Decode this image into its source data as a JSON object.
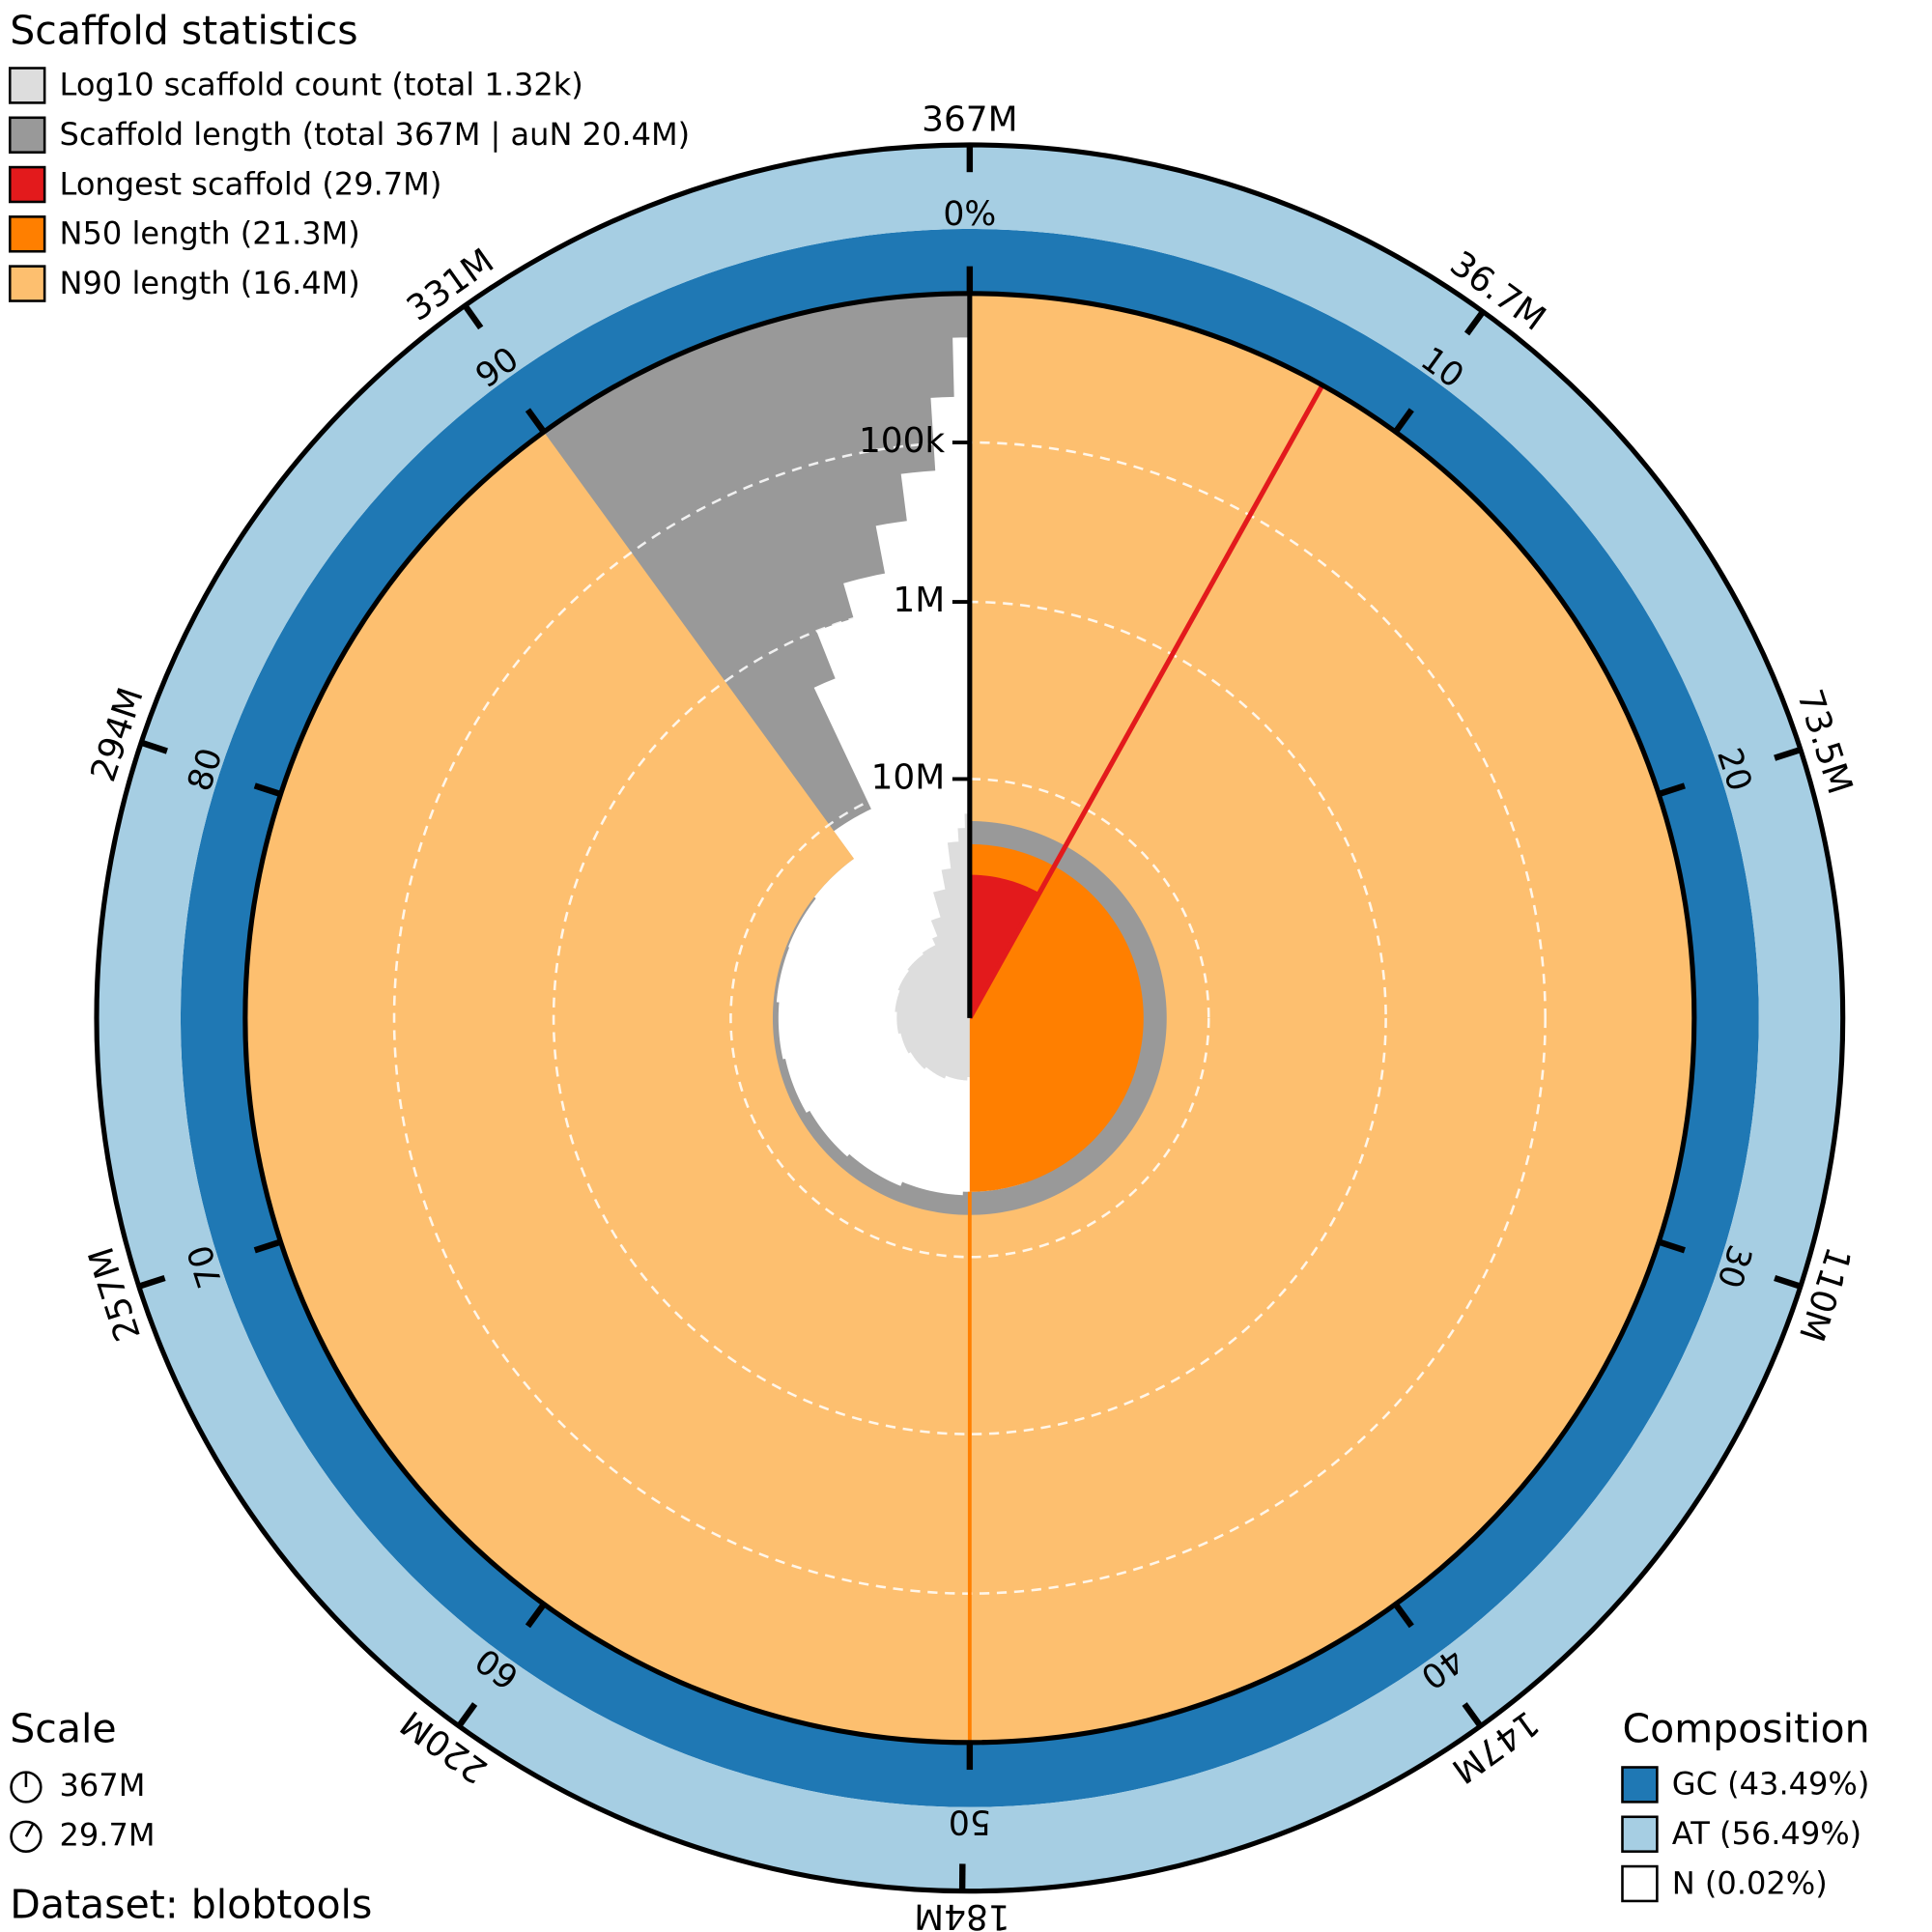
{
  "chart_data": {
    "type": "snail",
    "title": "Scaffold statistics",
    "legend": [
      {
        "label": "Log10 scaffold count (total 1.32k)",
        "color": "#dddddd"
      },
      {
        "label": "Scaffold length (total 367M | auN 20.4M)",
        "color": "#999999"
      },
      {
        "label": "Longest scaffold (29.7M)",
        "color": "#e31a1c"
      },
      {
        "label": "N50 length (21.3M)",
        "color": "#ff7f00"
      },
      {
        "label": "N90 length (16.4M)",
        "color": "#fdbf6f"
      }
    ],
    "total_length": 367000000,
    "longest": 29700000,
    "n50": 21300000,
    "n50_percent": 50,
    "n90": 16400000,
    "n90_percent": 90,
    "x": [
      8.09,
      14.63,
      20.9,
      27.03,
      33.02,
      38.96,
      44.82,
      50.62,
      56.21,
      61.52,
      66.64,
      71.54,
      76.31,
      80.94,
      85.52,
      89.99,
      92.99,
      94,
      95.5,
      97,
      98,
      99,
      99.6,
      100
    ],
    "lengths": [
      29700000,
      24000000,
      23000000,
      22500000,
      22000000,
      21800000,
      21500000,
      21300000,
      20500000,
      19500000,
      18800000,
      18000000,
      17500000,
      17000000,
      16800000,
      16400000,
      11000000,
      2000000,
      1000000,
      600000,
      300000,
      150000,
      50000,
      20000
    ],
    "counts": [
      1,
      2,
      3,
      4,
      5,
      6,
      7,
      8,
      9,
      10,
      11,
      12,
      13,
      14,
      15,
      16,
      17,
      22,
      40,
      100,
      200,
      500,
      800,
      1320
    ],
    "rlim": [
      100000000,
      10000
    ],
    "rlog": true,
    "rticks": [
      {
        "value": 100000,
        "label": "100k"
      },
      {
        "value": 1000000,
        "label": "1M"
      },
      {
        "value": 10000000,
        "label": "10M"
      }
    ],
    "grid": true,
    "percent_ticks": [
      {
        "value": 0,
        "label": "0%"
      },
      10,
      20,
      30,
      40,
      50,
      60,
      70,
      80,
      90
    ],
    "length_ticks": [
      {
        "value": 367000000,
        "label": "367M"
      },
      {
        "value": 36700000,
        "label": "36.7M"
      },
      {
        "value": 73500000,
        "label": "73.5M"
      },
      {
        "value": 110000000,
        "label": "110M"
      },
      {
        "value": 147000000,
        "label": "147M"
      },
      {
        "value": 184000000,
        "label": "184M"
      },
      {
        "value": 220000000,
        "label": "220M"
      },
      {
        "value": 257000000,
        "label": "257M"
      },
      {
        "value": 294000000,
        "label": "294M"
      },
      {
        "value": 331000000,
        "label": "331M"
      }
    ],
    "scale": {
      "title": "Scale",
      "items": [
        {
          "value": 367000000,
          "label": "367M"
        },
        {
          "value": 29700000,
          "label": "29.7M"
        }
      ]
    },
    "dataset": "Dataset: blobtools",
    "composition": {
      "title": "Composition",
      "items": [
        {
          "value": 43.49,
          "label": "GC (43.49%)",
          "color": "#1f78b4"
        },
        {
          "value": 56.49,
          "label": "AT (56.49%)",
          "color": "#a6cee3"
        },
        {
          "value": 0.02,
          "label": "N (0.02%)",
          "color": "#ffffff"
        }
      ]
    }
  }
}
